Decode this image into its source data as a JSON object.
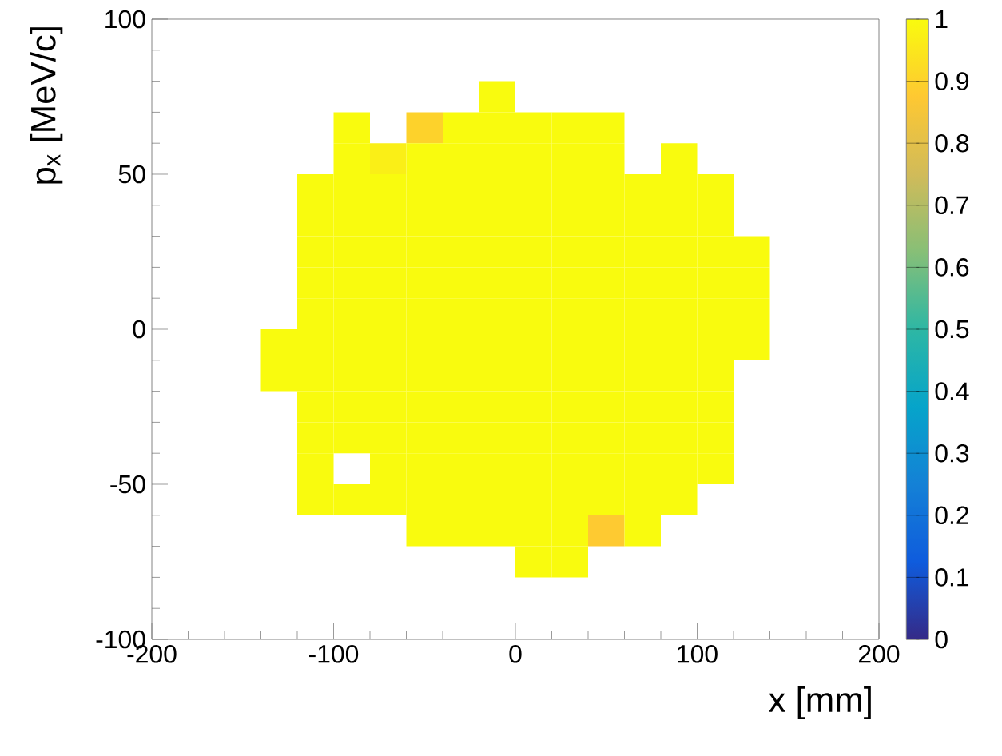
{
  "chart_data": {
    "type": "heatmap",
    "xlabel": "x [mm]",
    "ylabel": "p$_{x}$ [MeV/c]",
    "xlim": [
      -200,
      200
    ],
    "ylim": [
      -100,
      100
    ],
    "xticks": [
      -200,
      -100,
      0,
      100,
      200
    ],
    "yticks": [
      -100,
      -50,
      0,
      50,
      100
    ],
    "clim": [
      0,
      1
    ],
    "cticks": [
      0,
      0.1,
      0.2,
      0.3,
      0.4,
      0.5,
      0.6,
      0.7,
      0.8,
      0.9,
      1
    ],
    "x": [
      -130,
      -110,
      -90,
      -70,
      -50,
      -30,
      -10,
      10,
      30,
      50,
      70,
      90,
      110,
      130
    ],
    "y": [
      75,
      65,
      55,
      45,
      35,
      25,
      15,
      5,
      -5,
      -15,
      -25,
      -35,
      -45,
      -55,
      -65,
      -75
    ],
    "cells": [
      [
        null,
        null,
        null,
        null,
        null,
        null,
        1,
        null,
        null,
        null,
        null,
        null,
        null,
        null
      ],
      [
        null,
        null,
        1,
        null,
        0.9,
        1,
        1,
        1,
        1,
        1,
        null,
        null,
        null,
        null
      ],
      [
        null,
        null,
        1,
        0.97,
        1,
        1,
        1,
        1,
        1,
        1,
        null,
        1,
        null,
        null
      ],
      [
        null,
        1,
        1,
        1,
        1,
        1,
        1,
        1,
        1,
        1,
        1,
        1,
        1,
        null
      ],
      [
        null,
        1,
        1,
        1,
        1,
        1,
        1,
        1,
        1,
        1,
        1,
        1,
        1,
        null
      ],
      [
        null,
        1,
        1,
        1,
        1,
        1,
        1,
        1,
        1,
        1,
        1,
        1,
        1,
        1
      ],
      [
        null,
        1,
        1,
        1,
        1,
        1,
        1,
        1,
        1,
        1,
        1,
        1,
        1,
        1
      ],
      [
        null,
        1,
        1,
        1,
        1,
        1,
        1,
        1,
        1,
        1,
        1,
        1,
        1,
        1
      ],
      [
        1,
        1,
        1,
        1,
        1,
        1,
        1,
        1,
        1,
        1,
        1,
        1,
        1,
        1
      ],
      [
        1,
        1,
        1,
        1,
        1,
        1,
        1,
        1,
        1,
        1,
        1,
        1,
        1,
        null
      ],
      [
        null,
        1,
        1,
        1,
        1,
        1,
        1,
        1,
        1,
        1,
        1,
        1,
        1,
        null
      ],
      [
        null,
        1,
        1,
        1,
        1,
        1,
        1,
        1,
        1,
        1,
        1,
        1,
        1,
        null
      ],
      [
        null,
        1,
        null,
        1,
        1,
        1,
        1,
        1,
        1,
        1,
        1,
        1,
        1,
        null
      ],
      [
        null,
        1,
        1,
        1,
        1,
        1,
        1,
        1,
        1,
        1,
        1,
        1,
        null,
        null
      ],
      [
        null,
        null,
        null,
        null,
        1,
        1,
        1,
        1,
        1,
        0.88,
        1,
        null,
        null,
        null
      ],
      [
        null,
        null,
        null,
        null,
        null,
        null,
        null,
        1,
        1,
        null,
        null,
        null,
        null,
        null
      ]
    ]
  }
}
